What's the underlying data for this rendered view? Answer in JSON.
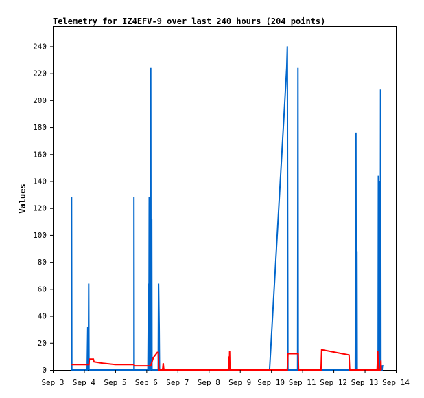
{
  "chart_data": {
    "type": "line",
    "title": "Telemetry for IZ4EFV-9 over last 240 hours (204 points)",
    "xlabel": "",
    "ylabel": "Values",
    "xlim": [
      0,
      11
    ],
    "ylim": [
      0,
      255
    ],
    "x_tick_labels": [
      "Sep 3",
      "Sep 4",
      "Sep 5",
      "Sep 6",
      "Sep 7",
      "Sep 8",
      "Sep 9",
      "Sep 10",
      "Sep 11",
      "Sep 12",
      "Sep 13",
      "Sep 14"
    ],
    "y_ticks": [
      0,
      20,
      40,
      60,
      80,
      100,
      120,
      140,
      160,
      180,
      200,
      220,
      240
    ],
    "grid": false,
    "legend": "none",
    "series": [
      {
        "color": "#0066cc",
        "points": [
          [
            0.6,
            0
          ],
          [
            0.6,
            128
          ],
          [
            0.61,
            0
          ],
          [
            1.1,
            0
          ],
          [
            1.12,
            32
          ],
          [
            1.14,
            0
          ],
          [
            1.15,
            64
          ],
          [
            1.16,
            0
          ],
          [
            2.6,
            0
          ],
          [
            2.6,
            128
          ],
          [
            2.61,
            0
          ],
          [
            3.05,
            0
          ],
          [
            3.07,
            64
          ],
          [
            3.08,
            0
          ],
          [
            3.09,
            128
          ],
          [
            3.1,
            0
          ],
          [
            3.13,
            0
          ],
          [
            3.14,
            224
          ],
          [
            3.15,
            0
          ],
          [
            3.17,
            112
          ],
          [
            3.18,
            0
          ],
          [
            3.38,
            0
          ],
          [
            3.39,
            64
          ],
          [
            3.41,
            32
          ],
          [
            3.42,
            0
          ],
          [
            6.95,
            0
          ],
          [
            7.5,
            224
          ],
          [
            7.52,
            240
          ],
          [
            7.54,
            0
          ],
          [
            7.85,
            0
          ],
          [
            7.86,
            224
          ],
          [
            7.87,
            0
          ],
          [
            9.7,
            0
          ],
          [
            9.72,
            176
          ],
          [
            9.73,
            0
          ],
          [
            9.75,
            88
          ],
          [
            9.76,
            0
          ],
          [
            10.43,
            0
          ],
          [
            10.44,
            144
          ],
          [
            10.45,
            0
          ],
          [
            10.47,
            140
          ],
          [
            10.48,
            0
          ],
          [
            10.5,
            0
          ],
          [
            10.51,
            208
          ],
          [
            10.52,
            0
          ],
          [
            10.56,
            0
          ],
          [
            10.57,
            3
          ],
          [
            10.6,
            3
          ]
        ]
      },
      {
        "color": "#ff0000",
        "points": [
          [
            0.6,
            4
          ],
          [
            1.1,
            4
          ],
          [
            1.16,
            4
          ],
          [
            1.17,
            8
          ],
          [
            1.3,
            8
          ],
          [
            1.32,
            6
          ],
          [
            1.6,
            5
          ],
          [
            2.0,
            4
          ],
          [
            2.6,
            4
          ],
          [
            2.62,
            3
          ],
          [
            3.1,
            3
          ],
          [
            3.14,
            3
          ],
          [
            3.22,
            9
          ],
          [
            3.35,
            13
          ],
          [
            3.38,
            13
          ],
          [
            3.4,
            0
          ],
          [
            3.52,
            0
          ],
          [
            3.54,
            5
          ],
          [
            3.56,
            0
          ],
          [
            5.63,
            0
          ],
          [
            5.65,
            10
          ],
          [
            5.66,
            0
          ],
          [
            5.67,
            14
          ],
          [
            5.68,
            0
          ],
          [
            7.52,
            0
          ],
          [
            7.54,
            12
          ],
          [
            7.87,
            12
          ],
          [
            7.88,
            0
          ],
          [
            8.6,
            0
          ],
          [
            8.62,
            15
          ],
          [
            9.5,
            11
          ],
          [
            9.52,
            0
          ],
          [
            10.4,
            0
          ],
          [
            10.42,
            14
          ],
          [
            10.44,
            0
          ],
          [
            10.5,
            0
          ],
          [
            10.52,
            7
          ],
          [
            10.53,
            0
          ]
        ]
      }
    ]
  }
}
